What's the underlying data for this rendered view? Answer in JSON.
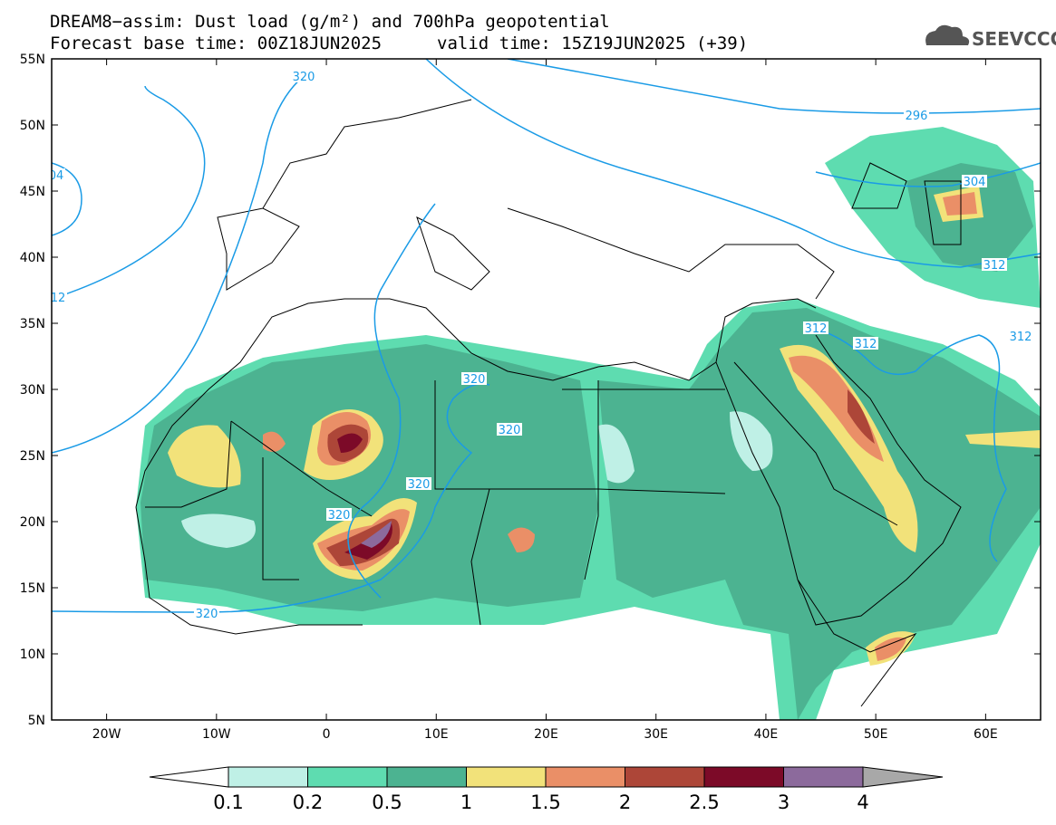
{
  "header": {
    "title": "DREAM8−assim: Dust load (g/m²) and 700hPa geopotential",
    "subtitle_left": "Forecast base time: 00Z18JUN2025",
    "subtitle_right": "valid time: 15Z19JUN2025 (+39)",
    "logo": "SEEVCCC"
  },
  "map": {
    "lon_ticks": [
      {
        "value": -20,
        "label": "20W"
      },
      {
        "value": -10,
        "label": "10W"
      },
      {
        "value": 0,
        "label": "0"
      },
      {
        "value": 10,
        "label": "10E"
      },
      {
        "value": 20,
        "label": "20E"
      },
      {
        "value": 30,
        "label": "30E"
      },
      {
        "value": 40,
        "label": "40E"
      },
      {
        "value": 50,
        "label": "50E"
      },
      {
        "value": 60,
        "label": "60E"
      }
    ],
    "lat_ticks": [
      {
        "value": 5,
        "label": "5N"
      },
      {
        "value": 10,
        "label": "10N"
      },
      {
        "value": 15,
        "label": "15N"
      },
      {
        "value": 20,
        "label": "20N"
      },
      {
        "value": 25,
        "label": "25N"
      },
      {
        "value": 30,
        "label": "30N"
      },
      {
        "value": 35,
        "label": "35N"
      },
      {
        "value": 40,
        "label": "40N"
      },
      {
        "value": 45,
        "label": "45N"
      },
      {
        "value": 50,
        "label": "50N"
      },
      {
        "value": 55,
        "label": "55N"
      }
    ],
    "contour_labels": [
      "320",
      "04",
      "12",
      "320",
      "320",
      "320",
      "320",
      "320",
      "296",
      "304",
      "312",
      "312",
      "312",
      "312"
    ]
  },
  "colorbar": {
    "labels": [
      "0.1",
      "0.2",
      "0.5",
      "1",
      "1.5",
      "2",
      "2.5",
      "3",
      "4"
    ],
    "colors": [
      "#ffffff",
      "#bff0e6",
      "#5edcb0",
      "#4cb391",
      "#f2e27a",
      "#ea8f67",
      "#ad4638",
      "#7c0a28",
      "#8c6a9c",
      "#a8a8a8"
    ]
  }
}
